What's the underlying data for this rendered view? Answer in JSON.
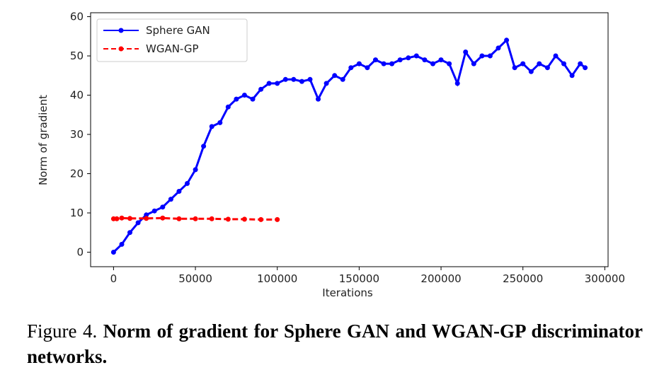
{
  "caption": {
    "prefix": "Figure 4. ",
    "text": "Norm of gradient for Sphere GAN and WGAN-GP discriminator networks."
  },
  "chart_data": {
    "type": "line",
    "xlabel": "Iterations",
    "ylabel": "Norm of gradient",
    "xlim": [
      -14000,
      302000
    ],
    "ylim": [
      -3.7,
      61
    ],
    "xticks": [
      0,
      50000,
      100000,
      150000,
      200000,
      250000,
      300000
    ],
    "xtick_labels": [
      "0",
      "50000",
      "100000",
      "150000",
      "200000",
      "250000",
      "300000"
    ],
    "yticks": [
      0,
      10,
      20,
      30,
      40,
      50,
      60
    ],
    "ytick_labels": [
      "0",
      "10",
      "20",
      "30",
      "40",
      "50",
      "60"
    ],
    "grid": false,
    "legend": "top-left",
    "series": [
      {
        "name": "Sphere GAN",
        "color": "#0000ff",
        "style": "solid",
        "marker": "dot",
        "x": [
          0,
          5000,
          10000,
          15000,
          20000,
          25000,
          30000,
          35000,
          40000,
          45000,
          50000,
          55000,
          60000,
          65000,
          70000,
          75000,
          80000,
          85000,
          90000,
          95000,
          100000,
          105000,
          110000,
          115000,
          120000,
          125000,
          130000,
          135000,
          140000,
          145000,
          150000,
          155000,
          160000,
          165000,
          170000,
          175000,
          180000,
          185000,
          190000,
          195000,
          200000,
          205000,
          210000,
          215000,
          220000,
          225000,
          230000,
          235000,
          240000,
          245000,
          250000,
          255000,
          260000,
          265000,
          270000,
          275000,
          280000,
          285000,
          288000
        ],
        "y": [
          0,
          2,
          5,
          7.5,
          9.5,
          10.5,
          11.5,
          13.5,
          15.5,
          17.5,
          21,
          27,
          32,
          33,
          37,
          39,
          40,
          39,
          41.5,
          43,
          43,
          44,
          44,
          43.5,
          44,
          39,
          43,
          45,
          44,
          47,
          48,
          47,
          49,
          48,
          48,
          49,
          49.5,
          50,
          49,
          48,
          49,
          48,
          43,
          51,
          48,
          50,
          50,
          52,
          54,
          47,
          48,
          46,
          48,
          47,
          50,
          48,
          45,
          48,
          47
        ]
      },
      {
        "name": "WGAN-GP",
        "color": "#ff0000",
        "style": "dashed",
        "marker": "dot",
        "x": [
          0,
          2000,
          5000,
          10000,
          20000,
          30000,
          40000,
          50000,
          60000,
          70000,
          80000,
          90000,
          100000
        ],
        "y": [
          8.5,
          8.5,
          8.7,
          8.6,
          8.6,
          8.7,
          8.5,
          8.5,
          8.5,
          8.4,
          8.4,
          8.3,
          8.3
        ]
      }
    ]
  }
}
